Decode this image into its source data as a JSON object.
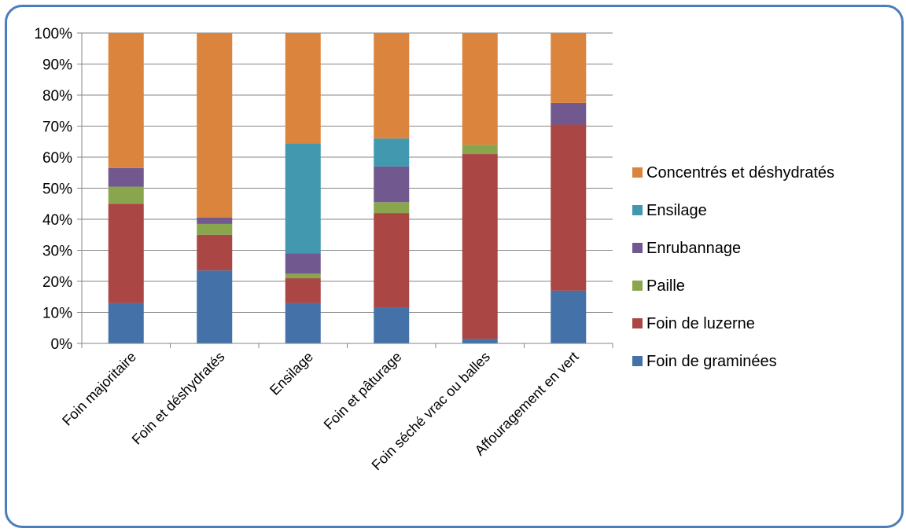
{
  "chart_data": {
    "type": "bar",
    "stacked": true,
    "percent_stacked": true,
    "categories": [
      "Foin majoritaire",
      "Foin et déshydratés",
      "Ensilage",
      "Foin et pâturage",
      "Foin séché vrac ou balles",
      "Affouragement en vert"
    ],
    "series": [
      {
        "name": "Foin de graminées",
        "color": "#4472a8",
        "values": [
          13,
          23.5,
          13,
          11.5,
          1.5,
          17
        ]
      },
      {
        "name": "Foin de luzerne",
        "color": "#aa4643",
        "values": [
          32,
          11.5,
          8,
          30.5,
          59.5,
          53.5
        ]
      },
      {
        "name": "Paille",
        "color": "#89a54e",
        "values": [
          5.5,
          3.5,
          1.5,
          3.5,
          3,
          0
        ]
      },
      {
        "name": "Enrubannage",
        "color": "#71588f",
        "values": [
          6,
          2,
          6.5,
          11.5,
          0,
          7
        ]
      },
      {
        "name": "Ensilage",
        "color": "#4198af",
        "values": [
          0,
          0,
          35.5,
          9,
          0,
          0
        ]
      },
      {
        "name": "Concentrés et déshydratés",
        "color": "#db843d",
        "values": [
          43.5,
          59.5,
          35.5,
          34,
          36,
          22.5
        ]
      }
    ],
    "y_ticks": [
      "0%",
      "10%",
      "20%",
      "30%",
      "40%",
      "50%",
      "60%",
      "70%",
      "80%",
      "90%",
      "100%"
    ],
    "ylim": [
      0,
      100
    ],
    "grid": true,
    "legend_position": "right",
    "legend_order": [
      "Concentrés et déshydratés",
      "Ensilage",
      "Enrubannage",
      "Paille",
      "Foin de luzerne",
      "Foin de graminées"
    ],
    "gridline_color": "#868686",
    "frame_color": "#4a7ebb"
  }
}
